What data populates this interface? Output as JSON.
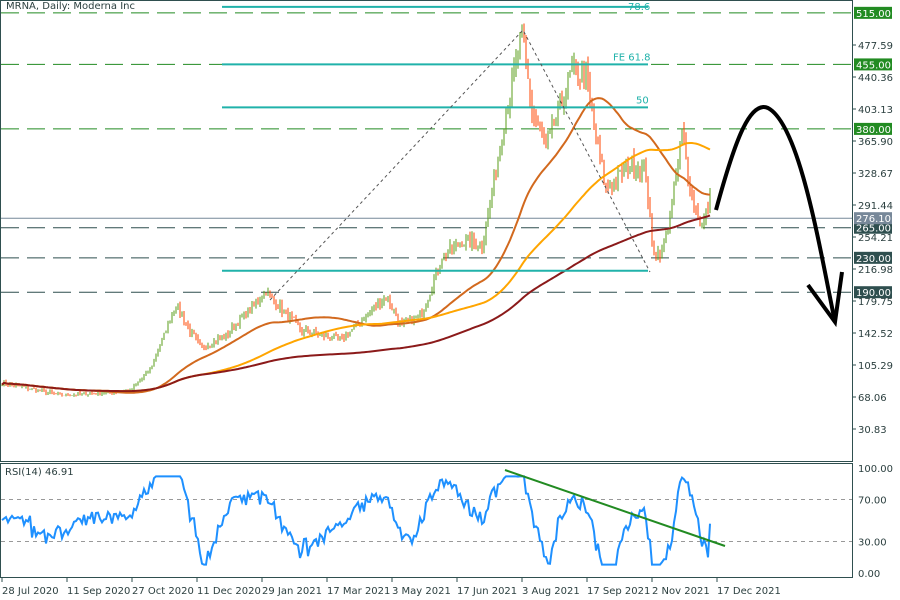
{
  "chart_data": {
    "type": "candlestick",
    "title": "MRNA, Daily:  Moderna Inc",
    "price_ticks": [
      477.59,
      440.36,
      403.13,
      365.9,
      328.67,
      291.44,
      254.21,
      216.98,
      179.75,
      142.52,
      105.29,
      68.06,
      30.83
    ],
    "levels": [
      {
        "label": "515.00",
        "value": 515,
        "color": "#228b22"
      },
      {
        "label": "455.00",
        "value": 455,
        "color": "#228b22"
      },
      {
        "label": "380.00",
        "value": 380,
        "color": "#228b22"
      },
      {
        "label": "265.00",
        "value": 265,
        "color": "#2f4f4f"
      },
      {
        "label": "230.00",
        "value": 230,
        "color": "#2f4f4f"
      },
      {
        "label": "190.00",
        "value": 190,
        "color": "#2f4f4f"
      }
    ],
    "last_price": {
      "label": "276.10",
      "value": 276.1
    },
    "fib_labels": {
      "top": "78.6",
      "fe": "FE 61.8",
      "half": "50"
    },
    "fib_values": [
      522,
      455,
      405,
      215
    ],
    "price_keypoints": [
      [
        0,
        85
      ],
      [
        29,
        70
      ],
      [
        64,
        75
      ],
      [
        74,
        100
      ],
      [
        87,
        175
      ],
      [
        99,
        125
      ],
      [
        112,
        140
      ],
      [
        132,
        190
      ],
      [
        150,
        145
      ],
      [
        170,
        135
      ],
      [
        192,
        185
      ],
      [
        200,
        150
      ],
      [
        210,
        165
      ],
      [
        220,
        230
      ],
      [
        230,
        250
      ],
      [
        240,
        245
      ],
      [
        247,
        330
      ],
      [
        252,
        400
      ],
      [
        260,
        490
      ],
      [
        265,
        400
      ],
      [
        272,
        360
      ],
      [
        280,
        410
      ],
      [
        285,
        450
      ],
      [
        292,
        440
      ],
      [
        297,
        370
      ],
      [
        302,
        310
      ],
      [
        315,
        340
      ],
      [
        322,
        330
      ],
      [
        325,
        240
      ],
      [
        330,
        235
      ],
      [
        335,
        290
      ],
      [
        340,
        375
      ],
      [
        345,
        300
      ],
      [
        350,
        265
      ],
      [
        354,
        300
      ]
    ],
    "x_labels": [
      "28 Jul 2020",
      "11 Sep 2020",
      "27 Oct 2020",
      "11 Dec 2020",
      "29 Jan 2021",
      "17 Mar 2021",
      "3 May 2021",
      "17 Jun 2021",
      "3 Aug 2021",
      "17 Sep 2021",
      "2 Nov 2021",
      "17 Dec 2021"
    ],
    "rsi": {
      "label": "RSI(14) 46.91",
      "ticks": [
        "100.00",
        "70.00",
        "30.00",
        "0.00"
      ],
      "tick_values": [
        100,
        70,
        30,
        0
      ],
      "last": 46.91
    }
  },
  "colors": {
    "bull": "#5a9e1a",
    "bear": "#ff4500",
    "ma_fast": "#d2691e",
    "ma_mid": "#ffa500",
    "ma_slow": "#8b1a1a",
    "fib": "#20b2aa",
    "rsi": "#1e90ff",
    "trend": "#228b22"
  }
}
